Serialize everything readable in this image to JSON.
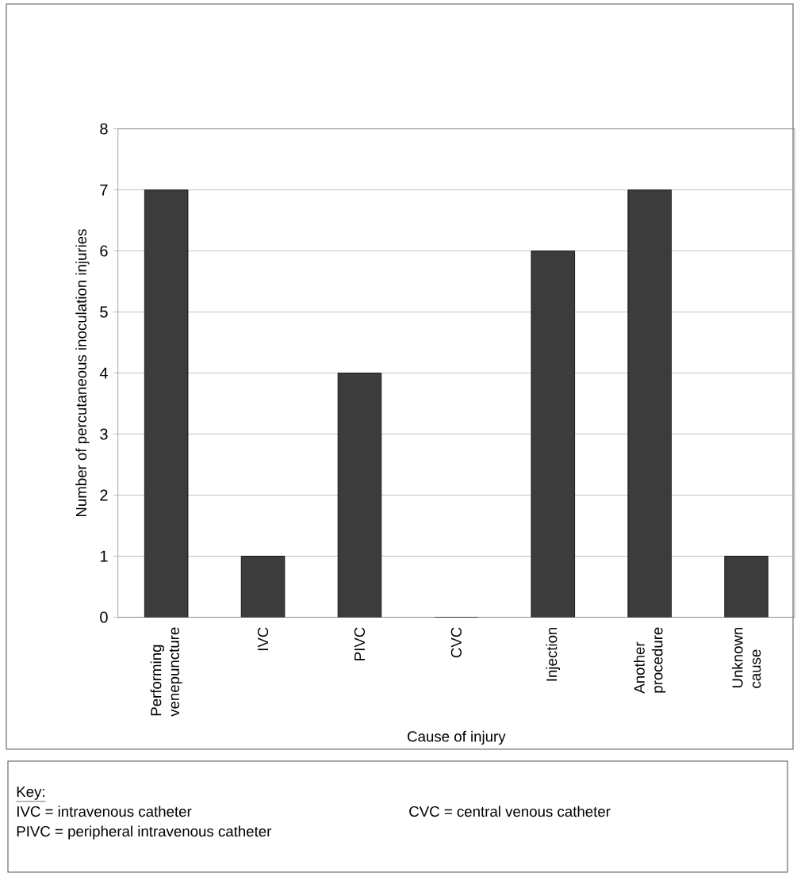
{
  "chart_data": {
    "type": "bar",
    "xlabel": "Cause of injury",
    "ylabel": "Number of  percutaneous inoculation injuries",
    "categories": [
      "Performing venepuncture",
      "IVC",
      "PIVC",
      "CVC",
      "Injection",
      "Another procedure",
      "Unknown cause"
    ],
    "values": [
      7,
      1,
      4,
      0,
      6,
      7,
      1
    ],
    "color": "#3c3c3c",
    "ylim": [
      0,
      8
    ],
    "yticks": [
      0,
      1,
      2,
      3,
      4,
      5,
      6,
      7,
      8
    ],
    "grid": "y",
    "annotations": [
      "Key:",
      "IVC = intravenous catheter",
      "CVC = central venous catheter",
      "PIVC = peripheral intravenous catheter"
    ]
  }
}
